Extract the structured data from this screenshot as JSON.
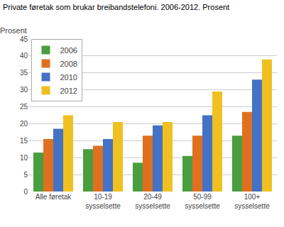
{
  "chart_data": {
    "type": "bar",
    "title": "Private føretak som brukar breibandstelefoni. 2006-2012. Prosent",
    "ylabel": "Prosent",
    "categories": [
      "Alle føretak",
      "10-19\nsysselsette",
      "20-49\nsysselsette",
      "50-99\nsysselsette",
      "100+\nsysselsette"
    ],
    "series": [
      {
        "name": "2006",
        "color": "#4a9e3f",
        "values": [
          11.5,
          12.5,
          8.5,
          10.5,
          16.5
        ]
      },
      {
        "name": "2008",
        "color": "#e07020",
        "values": [
          15.5,
          13.5,
          16.5,
          16.5,
          23.5
        ]
      },
      {
        "name": "2010",
        "color": "#4472c4",
        "values": [
          18.5,
          15.5,
          19.5,
          22.5,
          33.0
        ]
      },
      {
        "name": "2012",
        "color": "#f0c020",
        "values": [
          22.5,
          20.5,
          20.5,
          29.5,
          39.0
        ]
      }
    ],
    "ylim": [
      0,
      45
    ],
    "yticks": [
      0,
      5,
      10,
      15,
      20,
      25,
      30,
      35,
      40,
      45
    ],
    "grid": true,
    "legend": "upper left"
  }
}
